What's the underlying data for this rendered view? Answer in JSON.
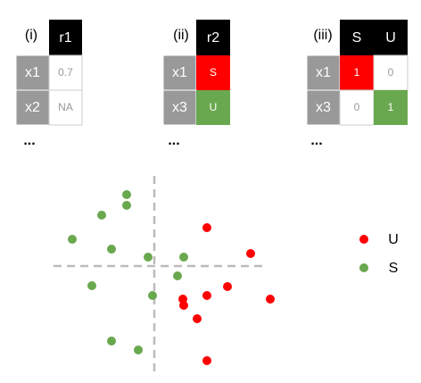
{
  "tables": [
    {
      "label": "(i)",
      "headers": [
        "r1"
      ],
      "rows": [
        {
          "name": "x1",
          "cells": [
            "0.7"
          ]
        },
        {
          "name": "x2",
          "cells": [
            "NA"
          ]
        }
      ],
      "more": "..."
    },
    {
      "label": "(ii)",
      "headers": [
        "r2"
      ],
      "rows": [
        {
          "name": "x1",
          "cells": [
            "S"
          ]
        },
        {
          "name": "x3",
          "cells": [
            "U"
          ]
        }
      ],
      "more": "..."
    },
    {
      "label": "(iii)",
      "headers": [
        "S",
        "U"
      ],
      "rows": [
        {
          "name": "x1",
          "cells": [
            "1",
            "0"
          ]
        },
        {
          "name": "x3",
          "cells": [
            "0",
            "1"
          ]
        }
      ],
      "more": "..."
    }
  ],
  "legend": [
    "U",
    "S"
  ]
}
